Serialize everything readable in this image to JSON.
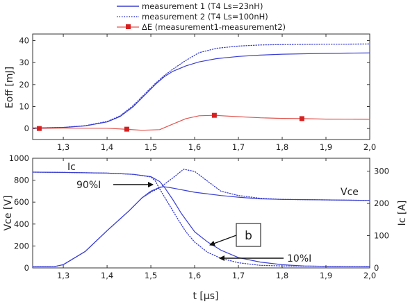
{
  "chart_data": [
    {
      "type": "line",
      "panel": "top",
      "ylabel": "Eoff [mJ]",
      "xlim": [
        1.23,
        2.0
      ],
      "ylim": [
        -5,
        43
      ],
      "yticks": [
        "0",
        "10",
        "20",
        "30",
        "40"
      ],
      "xticks": [
        "1,3",
        "1,4",
        "1,5",
        "1,6",
        "1,7",
        "1,8",
        "1,9",
        "2,0"
      ],
      "grid": false,
      "legend": {
        "position": "top-center",
        "entries": [
          {
            "label": "measurement 1 (T4 Ls=23nH)",
            "color": "#3a3fd1",
            "style": "solid"
          },
          {
            "label": "measurement 2 (T4 Ls=100nH)",
            "color": "#3a3fd1",
            "style": "dotted"
          },
          {
            "label": "ΔE (measurement1-measurement2)",
            "color": "#e0554f",
            "style": "solid-square"
          }
        ]
      },
      "series": [
        {
          "name": "measurement 1 (T4 Ls=23nH)",
          "color": "#3a3fd1",
          "style": "solid",
          "x": [
            1.23,
            1.3,
            1.35,
            1.4,
            1.43,
            1.46,
            1.49,
            1.51,
            1.53,
            1.55,
            1.58,
            1.61,
            1.65,
            1.7,
            1.75,
            1.8,
            1.85,
            1.9,
            1.95,
            2.0
          ],
          "y": [
            0.2,
            0.5,
            1.2,
            3.0,
            5.5,
            10.0,
            16.0,
            20.0,
            23.5,
            26.0,
            28.5,
            30.3,
            31.8,
            32.8,
            33.4,
            33.8,
            34.0,
            34.2,
            34.3,
            34.4
          ]
        },
        {
          "name": "measurement 2 (T4 Ls=100nH)",
          "color": "#3a3fd1",
          "style": "dotted",
          "x": [
            1.23,
            1.3,
            1.35,
            1.4,
            1.43,
            1.46,
            1.49,
            1.51,
            1.53,
            1.55,
            1.58,
            1.61,
            1.65,
            1.7,
            1.75,
            1.8,
            1.85,
            1.9,
            1.95,
            2.0
          ],
          "y": [
            0.2,
            0.5,
            1.3,
            3.2,
            5.8,
            10.5,
            16.5,
            20.5,
            24.0,
            27.0,
            31.0,
            34.5,
            36.5,
            37.5,
            38.0,
            38.2,
            38.3,
            38.4,
            38.4,
            38.5
          ]
        },
        {
          "name": "ΔE (measurement1-measurement2)",
          "color": "#e0554f",
          "style": "solid",
          "x": [
            1.23,
            1.3,
            1.4,
            1.44,
            1.48,
            1.52,
            1.55,
            1.58,
            1.61,
            1.645,
            1.7,
            1.75,
            1.8,
            1.845,
            1.9,
            2.0
          ],
          "y": [
            0.0,
            0.2,
            0.1,
            -0.3,
            -0.8,
            -0.5,
            2.0,
            4.5,
            5.8,
            6.0,
            5.4,
            4.9,
            4.6,
            4.5,
            4.3,
            4.2
          ]
        }
      ],
      "markers": {
        "series": "ΔE (measurement1-measurement2)",
        "x": [
          1.245,
          1.445,
          1.645,
          1.845
        ],
        "y": [
          0.0,
          -0.3,
          6.0,
          4.5
        ]
      }
    },
    {
      "type": "line",
      "panel": "bottom",
      "xlabel": "t [µs]",
      "ylabel": "Vce [V]",
      "ylabel_right": "Ic [A]",
      "xlim": [
        1.23,
        2.0
      ],
      "ylim": [
        0,
        1000
      ],
      "ylim_right": [
        0,
        340
      ],
      "yticks": [
        "0",
        "200",
        "400",
        "600",
        "800",
        "1000"
      ],
      "yticks_right": [
        "0",
        "100",
        "200",
        "300"
      ],
      "xticks": [
        "1,3",
        "1,4",
        "1,5",
        "1,6",
        "1,7",
        "1,8",
        "1,9",
        "2,0"
      ],
      "grid": false,
      "series": [
        {
          "name": "Vce",
          "color": "#3a3fd1",
          "style": "solid",
          "axis": "left",
          "x": [
            1.23,
            1.28,
            1.3,
            1.35,
            1.4,
            1.45,
            1.48,
            1.5,
            1.52,
            1.53,
            1.54,
            1.56,
            1.58,
            1.6,
            1.63,
            1.66,
            1.7,
            1.75,
            1.8,
            1.9,
            2.0
          ],
          "y": [
            10,
            12,
            30,
            150,
            340,
            520,
            640,
            700,
            735,
            740,
            735,
            720,
            705,
            690,
            675,
            660,
            645,
            630,
            625,
            620,
            615
          ]
        },
        {
          "name": "Vce (measurement 2)",
          "color": "#3a3fd1",
          "style": "dotted",
          "axis": "left",
          "x": [
            1.23,
            1.28,
            1.3,
            1.35,
            1.4,
            1.45,
            1.48,
            1.5,
            1.52,
            1.55,
            1.575,
            1.6,
            1.63,
            1.66,
            1.7,
            1.75,
            1.8,
            1.9,
            2.0
          ],
          "y": [
            10,
            12,
            30,
            150,
            340,
            520,
            640,
            690,
            730,
            820,
            900,
            880,
            790,
            700,
            660,
            635,
            625,
            620,
            615
          ]
        },
        {
          "name": "Ic",
          "color": "#3a3fd1",
          "style": "solid",
          "axis": "right",
          "x": [
            1.23,
            1.3,
            1.4,
            1.46,
            1.5,
            1.52,
            1.53,
            1.55,
            1.57,
            1.6,
            1.63,
            1.66,
            1.7,
            1.75,
            1.8,
            1.85,
            1.9,
            2.0
          ],
          "y": [
            297,
            296,
            294,
            290,
            283,
            268,
            252,
            212,
            168,
            112,
            80,
            55,
            32,
            18,
            10,
            6,
            5,
            4
          ]
        },
        {
          "name": "Ic (measurement 2)",
          "color": "#3a3fd1",
          "style": "dotted",
          "axis": "right",
          "x": [
            1.23,
            1.3,
            1.4,
            1.46,
            1.5,
            1.51,
            1.52,
            1.54,
            1.56,
            1.58,
            1.6,
            1.63,
            1.66,
            1.7,
            1.75,
            1.8,
            1.9,
            2.0
          ],
          "y": [
            297,
            296,
            294,
            290,
            282,
            270,
            245,
            200,
            155,
            112,
            80,
            48,
            30,
            16,
            8,
            6,
            5,
            4
          ]
        }
      ],
      "annotations": [
        {
          "text": "Ic"
        },
        {
          "text": "Vce"
        },
        {
          "text": "90%I"
        },
        {
          "text": "10%I"
        },
        {
          "text": "b"
        }
      ]
    }
  ]
}
